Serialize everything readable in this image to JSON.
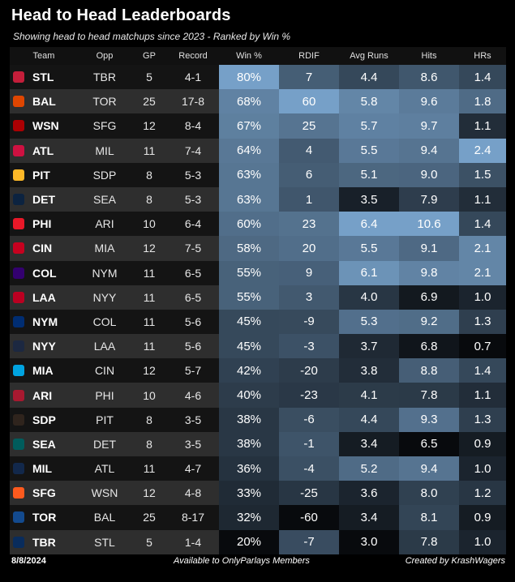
{
  "title": "Head to Head Leaderboards",
  "subtitle": "Showing head to head matchups since 2023 - Ranked by Win %",
  "columns": [
    "Team",
    "Opp",
    "GP",
    "Record",
    "Win %",
    "RDIF",
    "Avg Runs",
    "Hits",
    "HRs"
  ],
  "rows": [
    {
      "team": "STL",
      "opp": "TBR",
      "gp": "5",
      "record": "4-1",
      "win": "80%",
      "rdif": "7",
      "avg": "4.4",
      "hits": "8.6",
      "hrs": "1.4",
      "logo": "stl-cardinals-logo-icon",
      "logo_color": "#c41e3a"
    },
    {
      "team": "BAL",
      "opp": "TOR",
      "gp": "25",
      "record": "17-8",
      "win": "68%",
      "rdif": "60",
      "avg": "5.8",
      "hits": "9.6",
      "hrs": "1.8",
      "logo": "bal-orioles-logo-icon",
      "logo_color": "#df4601"
    },
    {
      "team": "WSN",
      "opp": "SFG",
      "gp": "12",
      "record": "8-4",
      "win": "67%",
      "rdif": "25",
      "avg": "5.7",
      "hits": "9.7",
      "hrs": "1.1",
      "logo": "wsn-nationals-logo-icon",
      "logo_color": "#ab0003"
    },
    {
      "team": "ATL",
      "opp": "MIL",
      "gp": "11",
      "record": "7-4",
      "win": "64%",
      "rdif": "4",
      "avg": "5.5",
      "hits": "9.4",
      "hrs": "2.4",
      "logo": "atl-braves-logo-icon",
      "logo_color": "#ce1141"
    },
    {
      "team": "PIT",
      "opp": "SDP",
      "gp": "8",
      "record": "5-3",
      "win": "63%",
      "rdif": "6",
      "avg": "5.1",
      "hits": "9.0",
      "hrs": "1.5",
      "logo": "pit-pirates-logo-icon",
      "logo_color": "#fdb827"
    },
    {
      "team": "DET",
      "opp": "SEA",
      "gp": "8",
      "record": "5-3",
      "win": "63%",
      "rdif": "1",
      "avg": "3.5",
      "hits": "7.9",
      "hrs": "1.1",
      "logo": "det-tigers-logo-icon",
      "logo_color": "#0c2340"
    },
    {
      "team": "PHI",
      "opp": "ARI",
      "gp": "10",
      "record": "6-4",
      "win": "60%",
      "rdif": "23",
      "avg": "6.4",
      "hits": "10.6",
      "hrs": "1.4",
      "logo": "phi-phillies-logo-icon",
      "logo_color": "#e81828"
    },
    {
      "team": "CIN",
      "opp": "MIA",
      "gp": "12",
      "record": "7-5",
      "win": "58%",
      "rdif": "20",
      "avg": "5.5",
      "hits": "9.1",
      "hrs": "2.1",
      "logo": "cin-reds-logo-icon",
      "logo_color": "#c6011f"
    },
    {
      "team": "COL",
      "opp": "NYM",
      "gp": "11",
      "record": "6-5",
      "win": "55%",
      "rdif": "9",
      "avg": "6.1",
      "hits": "9.8",
      "hrs": "2.1",
      "logo": "col-rockies-logo-icon",
      "logo_color": "#33006f"
    },
    {
      "team": "LAA",
      "opp": "NYY",
      "gp": "11",
      "record": "6-5",
      "win": "55%",
      "rdif": "3",
      "avg": "4.0",
      "hits": "6.9",
      "hrs": "1.0",
      "logo": "laa-angels-logo-icon",
      "logo_color": "#ba0021"
    },
    {
      "team": "NYM",
      "opp": "COL",
      "gp": "11",
      "record": "5-6",
      "win": "45%",
      "rdif": "-9",
      "avg": "5.3",
      "hits": "9.2",
      "hrs": "1.3",
      "logo": "nym-mets-logo-icon",
      "logo_color": "#002d72"
    },
    {
      "team": "NYY",
      "opp": "LAA",
      "gp": "11",
      "record": "5-6",
      "win": "45%",
      "rdif": "-3",
      "avg": "3.7",
      "hits": "6.8",
      "hrs": "0.7",
      "logo": "nyy-yankees-logo-icon",
      "logo_color": "#1c2841"
    },
    {
      "team": "MIA",
      "opp": "CIN",
      "gp": "12",
      "record": "5-7",
      "win": "42%",
      "rdif": "-20",
      "avg": "3.8",
      "hits": "8.8",
      "hrs": "1.4",
      "logo": "mia-marlins-logo-icon",
      "logo_color": "#00a3e0"
    },
    {
      "team": "ARI",
      "opp": "PHI",
      "gp": "10",
      "record": "4-6",
      "win": "40%",
      "rdif": "-23",
      "avg": "4.1",
      "hits": "7.8",
      "hrs": "1.1",
      "logo": "ari-diamondbacks-logo-icon",
      "logo_color": "#a71930"
    },
    {
      "team": "SDP",
      "opp": "PIT",
      "gp": "8",
      "record": "3-5",
      "win": "38%",
      "rdif": "-6",
      "avg": "4.4",
      "hits": "9.3",
      "hrs": "1.3",
      "logo": "sdp-padres-logo-icon",
      "logo_color": "#2f241d"
    },
    {
      "team": "SEA",
      "opp": "DET",
      "gp": "8",
      "record": "3-5",
      "win": "38%",
      "rdif": "-1",
      "avg": "3.4",
      "hits": "6.5",
      "hrs": "0.9",
      "logo": "sea-mariners-logo-icon",
      "logo_color": "#005c5c"
    },
    {
      "team": "MIL",
      "opp": "ATL",
      "gp": "11",
      "record": "4-7",
      "win": "36%",
      "rdif": "-4",
      "avg": "5.2",
      "hits": "9.4",
      "hrs": "1.0",
      "logo": "mil-brewers-logo-icon",
      "logo_color": "#12284b"
    },
    {
      "team": "SFG",
      "opp": "WSN",
      "gp": "12",
      "record": "4-8",
      "win": "33%",
      "rdif": "-25",
      "avg": "3.6",
      "hits": "8.0",
      "hrs": "1.2",
      "logo": "sfg-giants-logo-icon",
      "logo_color": "#fd5a1e"
    },
    {
      "team": "TOR",
      "opp": "BAL",
      "gp": "25",
      "record": "8-17",
      "win": "32%",
      "rdif": "-60",
      "avg": "3.4",
      "hits": "8.1",
      "hrs": "0.9",
      "logo": "tor-bluejays-logo-icon",
      "logo_color": "#134a8e"
    },
    {
      "team": "TBR",
      "opp": "STL",
      "gp": "5",
      "record": "1-4",
      "win": "20%",
      "rdif": "-7",
      "avg": "3.0",
      "hits": "7.8",
      "hrs": "1.0",
      "logo": "tbr-rays-logo-icon",
      "logo_color": "#092c5c"
    }
  ],
  "footer": {
    "date": "8/8/2024",
    "availability": "Available to OnlyParlays Members",
    "credit": "Created by KrashWagers"
  }
}
